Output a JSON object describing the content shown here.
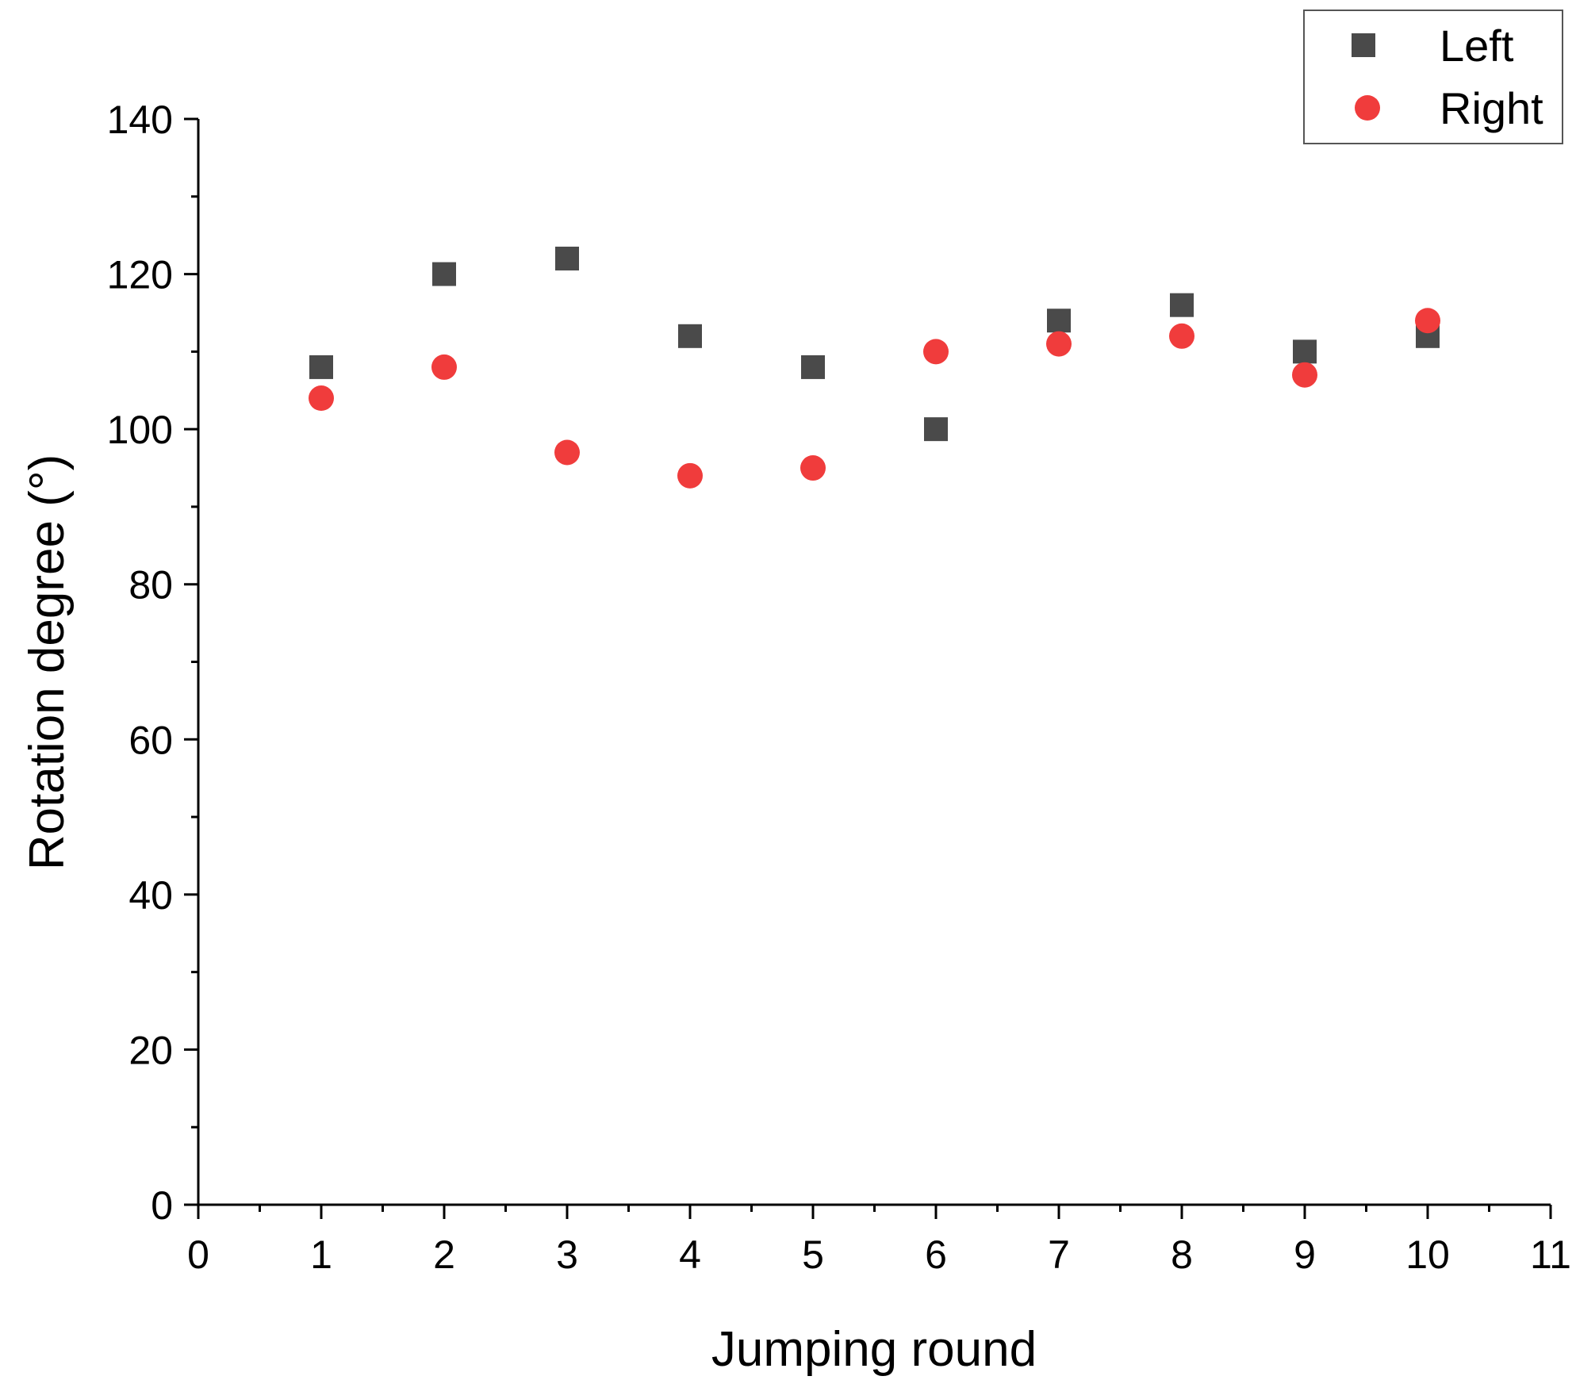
{
  "chart_data": {
    "type": "scatter",
    "title": "",
    "xlabel": "Jumping round",
    "ylabel": "Rotation degree (°)",
    "xlim": [
      0,
      11
    ],
    "ylim": [
      0,
      140
    ],
    "x_ticks": [
      "0",
      "1",
      "2",
      "3",
      "4",
      "5",
      "6",
      "7",
      "8",
      "9",
      "10",
      "11"
    ],
    "y_ticks": [
      "0",
      "20",
      "40",
      "60",
      "80",
      "100",
      "120",
      "140"
    ],
    "grid": false,
    "legend_position": "top-right",
    "series": [
      {
        "name": "Left",
        "marker": "square",
        "color": "#4a4a4a",
        "x": [
          1,
          2,
          3,
          4,
          5,
          6,
          7,
          8,
          9,
          10
        ],
        "y": [
          108,
          120,
          122,
          112,
          108,
          100,
          114,
          116,
          110,
          112
        ]
      },
      {
        "name": "Right",
        "marker": "circle",
        "color": "#f03c3c",
        "x": [
          1,
          2,
          3,
          4,
          5,
          6,
          7,
          8,
          9,
          10
        ],
        "y": [
          104,
          108,
          97,
          94,
          95,
          110,
          111,
          112,
          107,
          114
        ]
      }
    ]
  }
}
